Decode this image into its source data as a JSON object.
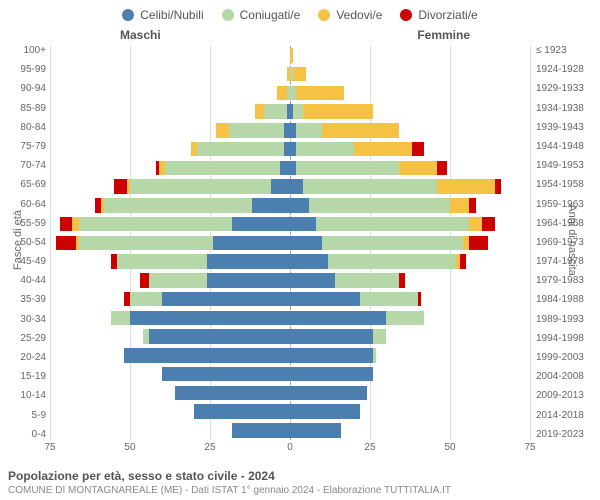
{
  "type": "population-pyramid",
  "background_color": "#ffffff",
  "grid_color": "#dddddd",
  "centerline_color": "#999999",
  "font_family": "Arial",
  "label_color": "#666666",
  "legend": [
    {
      "label": "Celibi/Nubili",
      "color": "#4a7fb0"
    },
    {
      "label": "Coniugati/e",
      "color": "#b6d7a8"
    },
    {
      "label": "Vedovi/e",
      "color": "#f6c244"
    },
    {
      "label": "Divorziati/e",
      "color": "#cc0000"
    }
  ],
  "side_labels": {
    "left": "Maschi",
    "right": "Femmine"
  },
  "y_left_title": "Fasce di età",
  "y_right_title": "Anni di nascita",
  "title": "Popolazione per età, sesso e stato civile - 2024",
  "subtitle": "COMUNE DI MONTAGNAREALE (ME) - Dati ISTAT 1° gennaio 2024 - Elaborazione TUTTITALIA.IT",
  "x_axis": {
    "max": 75,
    "ticks": [
      75,
      50,
      25,
      0,
      25,
      50,
      75
    ]
  },
  "rows": [
    {
      "age": "100+",
      "birth": "≤ 1923",
      "m": [
        0,
        0,
        0,
        0
      ],
      "f": [
        0,
        0,
        1,
        0
      ]
    },
    {
      "age": "95-99",
      "birth": "1924-1928",
      "m": [
        0,
        0,
        1,
        0
      ],
      "f": [
        0,
        1,
        4,
        0
      ]
    },
    {
      "age": "90-94",
      "birth": "1929-1933",
      "m": [
        0,
        1,
        3,
        0
      ],
      "f": [
        0,
        2,
        15,
        0
      ]
    },
    {
      "age": "85-89",
      "birth": "1934-1938",
      "m": [
        1,
        7,
        3,
        0
      ],
      "f": [
        1,
        3,
        22,
        0
      ]
    },
    {
      "age": "80-84",
      "birth": "1939-1943",
      "m": [
        2,
        17,
        4,
        0
      ],
      "f": [
        2,
        8,
        24,
        0
      ]
    },
    {
      "age": "75-79",
      "birth": "1944-1948",
      "m": [
        2,
        27,
        2,
        0
      ],
      "f": [
        2,
        18,
        18,
        4
      ]
    },
    {
      "age": "70-74",
      "birth": "1949-1953",
      "m": [
        3,
        36,
        2,
        1
      ],
      "f": [
        2,
        32,
        12,
        3
      ]
    },
    {
      "age": "65-69",
      "birth": "1954-1958",
      "m": [
        6,
        44,
        1,
        4
      ],
      "f": [
        4,
        42,
        18,
        2
      ]
    },
    {
      "age": "60-64",
      "birth": "1959-1963",
      "m": [
        12,
        46,
        1,
        2
      ],
      "f": [
        6,
        44,
        6,
        2
      ]
    },
    {
      "age": "55-59",
      "birth": "1964-1968",
      "m": [
        18,
        48,
        2,
        4
      ],
      "f": [
        8,
        48,
        4,
        4
      ]
    },
    {
      "age": "50-54",
      "birth": "1969-1973",
      "m": [
        24,
        42,
        1,
        6
      ],
      "f": [
        10,
        44,
        2,
        6
      ]
    },
    {
      "age": "45-49",
      "birth": "1974-1978",
      "m": [
        26,
        28,
        0,
        2
      ],
      "f": [
        12,
        40,
        1,
        2
      ]
    },
    {
      "age": "40-44",
      "birth": "1979-1983",
      "m": [
        26,
        18,
        0,
        3
      ],
      "f": [
        14,
        20,
        0,
        2
      ]
    },
    {
      "age": "35-39",
      "birth": "1984-1988",
      "m": [
        40,
        10,
        0,
        2
      ],
      "f": [
        22,
        18,
        0,
        1
      ]
    },
    {
      "age": "30-34",
      "birth": "1989-1993",
      "m": [
        50,
        6,
        0,
        0
      ],
      "f": [
        30,
        12,
        0,
        0
      ]
    },
    {
      "age": "25-29",
      "birth": "1994-1998",
      "m": [
        44,
        2,
        0,
        0
      ],
      "f": [
        26,
        4,
        0,
        0
      ]
    },
    {
      "age": "20-24",
      "birth": "1999-2003",
      "m": [
        52,
        0,
        0,
        0
      ],
      "f": [
        26,
        1,
        0,
        0
      ]
    },
    {
      "age": "15-19",
      "birth": "2004-2008",
      "m": [
        40,
        0,
        0,
        0
      ],
      "f": [
        26,
        0,
        0,
        0
      ]
    },
    {
      "age": "10-14",
      "birth": "2009-2013",
      "m": [
        36,
        0,
        0,
        0
      ],
      "f": [
        24,
        0,
        0,
        0
      ]
    },
    {
      "age": "5-9",
      "birth": "2014-2018",
      "m": [
        30,
        0,
        0,
        0
      ],
      "f": [
        22,
        0,
        0,
        0
      ]
    },
    {
      "age": "0-4",
      "birth": "2019-2023",
      "m": [
        18,
        0,
        0,
        0
      ],
      "f": [
        16,
        0,
        0,
        0
      ]
    }
  ],
  "colors": {
    "celibi": "#4a7fb0",
    "coniug": "#b6d7a8",
    "vedovi": "#f6c244",
    "divorz": "#cc0000"
  }
}
